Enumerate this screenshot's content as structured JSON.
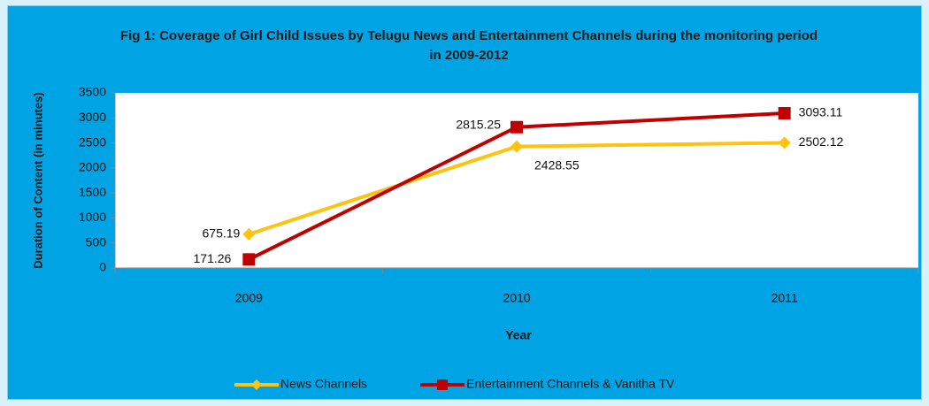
{
  "chart_data": {
    "type": "line",
    "title": "Fig 1: Coverage of Girl Child Issues by Telugu News and Entertainment Channels during the monitoring period in 2009-2012",
    "x_label": "Year",
    "y_label": "Duration of Content (in minutes)",
    "categories": [
      "2009",
      "2010",
      "2011"
    ],
    "series": [
      {
        "name": "News Channels",
        "color": "#ffc20e",
        "values": [
          675.19,
          2428.55,
          2502.12
        ]
      },
      {
        "name": "Entertainment Channels & Vanitha TV",
        "color": "#c00000",
        "values": [
          171.26,
          2815.25,
          3093.11
        ]
      }
    ],
    "ylim": [
      0,
      3500
    ],
    "yticks": [
      0,
      500,
      1000,
      1500,
      2000,
      2500,
      3000,
      3500
    ],
    "grid": false
  }
}
